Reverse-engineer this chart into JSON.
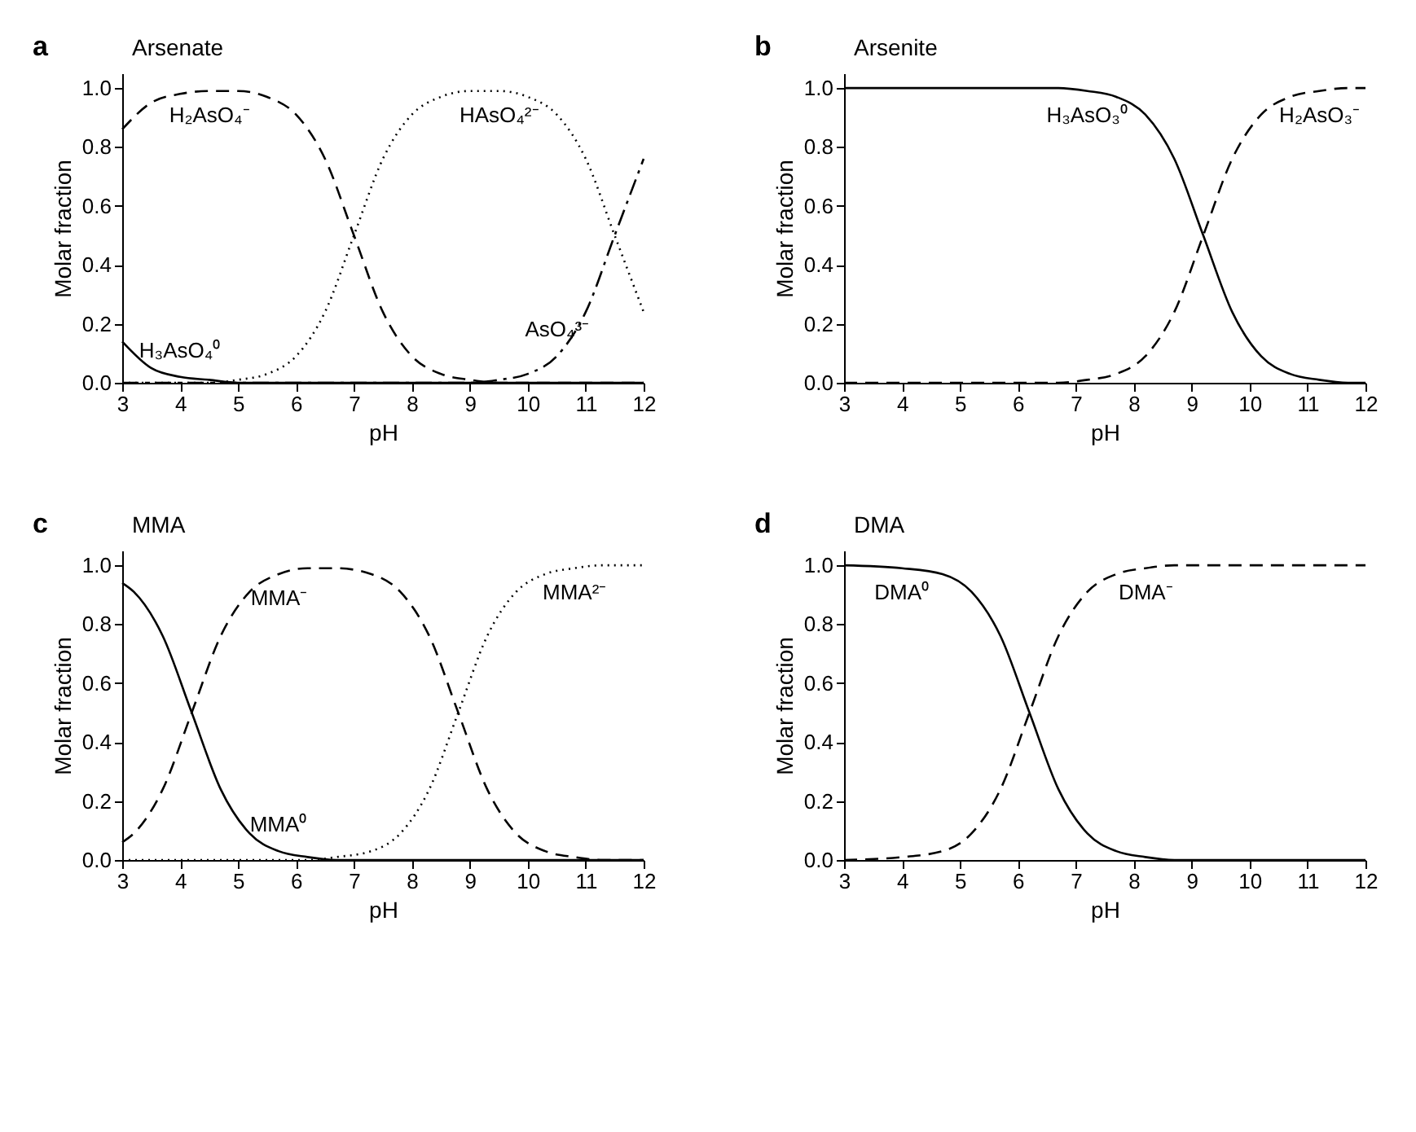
{
  "chart_data": [
    {
      "type": "line",
      "title": "Arsenate",
      "xlabel": "pH",
      "ylabel": "Molar fraction",
      "xlim": [
        3,
        12
      ],
      "ylim": [
        0,
        1.05
      ],
      "xticks": [
        3,
        4,
        5,
        6,
        7,
        8,
        9,
        10,
        11,
        12
      ],
      "yticks": [
        {
          "value": 0,
          "label": "0.0"
        },
        {
          "value": 0.2,
          "label": "0.2"
        },
        {
          "value": 0.4,
          "label": "0.4"
        },
        {
          "value": 0.6,
          "label": "0.6"
        },
        {
          "value": 0.8,
          "label": "0.8"
        },
        {
          "value": 1,
          "label": "1.0"
        }
      ],
      "x": [
        3,
        3.5,
        4,
        4.5,
        5,
        5.5,
        6,
        6.5,
        7,
        7.5,
        8,
        8.5,
        9,
        9.5,
        10,
        10.5,
        11,
        11.5,
        12
      ],
      "series": [
        {
          "color": "#000000",
          "line_style": "solid",
          "values": [
            0.14,
            0.05,
            0.02,
            0.01,
            0,
            0,
            0,
            0,
            0,
            0,
            0,
            0,
            0,
            0,
            0,
            0,
            0,
            0,
            0
          ]
        },
        {
          "color": "#000000",
          "line_style": "dashed",
          "values": [
            0.86,
            0.95,
            0.98,
            0.99,
            0.99,
            0.97,
            0.91,
            0.76,
            0.5,
            0.24,
            0.09,
            0.03,
            0.01,
            0,
            0,
            0,
            0,
            0,
            0
          ]
        },
        {
          "color": "#000000",
          "line_style": "dotted",
          "values": [
            0,
            0,
            0,
            0,
            0.01,
            0.03,
            0.09,
            0.24,
            0.5,
            0.76,
            0.91,
            0.97,
            0.99,
            0.99,
            0.97,
            0.91,
            0.76,
            0.5,
            0.24
          ]
        },
        {
          "color": "#000000",
          "line_style": "dashdot",
          "values": [
            0,
            0,
            0,
            0,
            0,
            0,
            0,
            0,
            0,
            0,
            0,
            0,
            0,
            0.01,
            0.03,
            0.09,
            0.24,
            0.5,
            0.76
          ]
        }
      ],
      "annotations": [
        "a",
        {
          "text": "H₂AsO₄⁻",
          "x": 4.5,
          "y": 0.99
        },
        {
          "text": "HAsO₄²⁻",
          "x": 9.5,
          "y": 0.99
        },
        {
          "text": "AsO₄³⁻",
          "x": 10.5,
          "y": 0.09
        },
        {
          "text": "H₃AsO₄⁰",
          "x": 4,
          "y": 0.02
        }
      ]
    },
    {
      "type": "line",
      "title": "Arsenite",
      "xlabel": "pH",
      "ylabel": "Molar fraction",
      "xlim": [
        3,
        12
      ],
      "ylim": [
        0,
        1.05
      ],
      "xticks": [
        3,
        4,
        5,
        6,
        7,
        8,
        9,
        10,
        11,
        12
      ],
      "yticks": [
        {
          "value": 0,
          "label": "0.0"
        },
        {
          "value": 0.2,
          "label": "0.2"
        },
        {
          "value": 0.4,
          "label": "0.4"
        },
        {
          "value": 0.6,
          "label": "0.6"
        },
        {
          "value": 0.8,
          "label": "0.8"
        },
        {
          "value": 1,
          "label": "1.0"
        }
      ],
      "x": [
        3,
        5,
        6,
        6.7,
        7.2,
        7.7,
        8.2,
        8.7,
        9.2,
        9.7,
        10.2,
        10.7,
        11.2,
        11.7,
        12
      ],
      "series": [
        {
          "color": "#000000",
          "line_style": "solid",
          "values": [
            1,
            1,
            1,
            1,
            0.99,
            0.97,
            0.91,
            0.76,
            0.5,
            0.24,
            0.09,
            0.03,
            0.01,
            0,
            0
          ]
        },
        {
          "color": "#000000",
          "line_style": "dashed",
          "values": [
            0,
            0,
            0,
            0,
            0.01,
            0.03,
            0.09,
            0.24,
            0.5,
            0.76,
            0.91,
            0.97,
            0.99,
            1,
            1
          ]
        }
      ],
      "annotations": [
        "b",
        {
          "text": "H₃AsO₃⁰",
          "x": 7.2,
          "y": 0.99
        },
        {
          "text": "H₂AsO₃⁻",
          "x": 11.2,
          "y": 0.99
        }
      ]
    },
    {
      "type": "line",
      "title": "MMA",
      "xlabel": "pH",
      "ylabel": "Molar fraction",
      "xlim": [
        3,
        12
      ],
      "ylim": [
        0,
        1.05
      ],
      "xticks": [
        3,
        4,
        5,
        6,
        7,
        8,
        9,
        10,
        11,
        12
      ],
      "yticks": [
        {
          "value": 0,
          "label": "0.0"
        },
        {
          "value": 0.2,
          "label": "0.2"
        },
        {
          "value": 0.4,
          "label": "0.4"
        },
        {
          "value": 0.6,
          "label": "0.6"
        },
        {
          "value": 0.8,
          "label": "0.8"
        },
        {
          "value": 1,
          "label": "1.0"
        }
      ],
      "x": [
        3,
        3.2,
        3.7,
        4.2,
        4.7,
        5.2,
        5.7,
        6.2,
        6.7,
        7.3,
        7.8,
        8.3,
        8.8,
        9.3,
        9.8,
        10.3,
        10.8,
        11.3,
        12
      ],
      "series": [
        {
          "color": "#000000",
          "line_style": "solid",
          "values": [
            0.94,
            0.91,
            0.76,
            0.5,
            0.24,
            0.09,
            0.03,
            0.01,
            0,
            0,
            0,
            0,
            0,
            0,
            0,
            0,
            0,
            0,
            0
          ]
        },
        {
          "color": "#000000",
          "line_style": "dashed",
          "values": [
            0.06,
            0.09,
            0.24,
            0.5,
            0.76,
            0.91,
            0.97,
            0.99,
            0.99,
            0.97,
            0.91,
            0.76,
            0.5,
            0.24,
            0.09,
            0.03,
            0.01,
            0,
            0
          ]
        },
        {
          "color": "#000000",
          "line_style": "dotted",
          "values": [
            0,
            0,
            0,
            0,
            0,
            0,
            0,
            0,
            0.01,
            0.03,
            0.09,
            0.24,
            0.5,
            0.76,
            0.91,
            0.97,
            0.99,
            1,
            1
          ]
        }
      ],
      "annotations": [
        "c",
        {
          "text": "MMA⁻",
          "x": 5.7,
          "y": 0.97
        },
        {
          "text": "MMA²⁻",
          "x": 10.8,
          "y": 0.99
        },
        {
          "text": "MMA⁰",
          "x": 5.7,
          "y": 0.03
        }
      ]
    },
    {
      "type": "line",
      "title": "DMA",
      "xlabel": "pH",
      "ylabel": "Molar fraction",
      "xlim": [
        3,
        12
      ],
      "ylim": [
        0,
        1.05
      ],
      "xticks": [
        3,
        4,
        5,
        6,
        7,
        8,
        9,
        10,
        11,
        12
      ],
      "yticks": [
        {
          "value": 0,
          "label": "0.0"
        },
        {
          "value": 0.2,
          "label": "0.2"
        },
        {
          "value": 0.4,
          "label": "0.4"
        },
        {
          "value": 0.6,
          "label": "0.6"
        },
        {
          "value": 0.8,
          "label": "0.8"
        },
        {
          "value": 1,
          "label": "1.0"
        }
      ],
      "x": [
        3,
        4,
        4.7,
        5.2,
        5.7,
        6.2,
        6.7,
        7.2,
        7.7,
        8.2,
        8.7,
        9.7,
        12
      ],
      "series": [
        {
          "color": "#000000",
          "line_style": "solid",
          "values": [
            1,
            0.99,
            0.97,
            0.91,
            0.76,
            0.5,
            0.24,
            0.09,
            0.03,
            0.01,
            0,
            0,
            0
          ]
        },
        {
          "color": "#000000",
          "line_style": "dashed",
          "values": [
            0,
            0.01,
            0.03,
            0.09,
            0.24,
            0.5,
            0.76,
            0.91,
            0.97,
            0.99,
            1,
            1,
            1
          ]
        }
      ],
      "annotations": [
        "d",
        {
          "text": "DMA⁰",
          "x": 4,
          "y": 0.99
        },
        {
          "text": "DMA⁻",
          "x": 8.2,
          "y": 0.99
        }
      ]
    }
  ]
}
